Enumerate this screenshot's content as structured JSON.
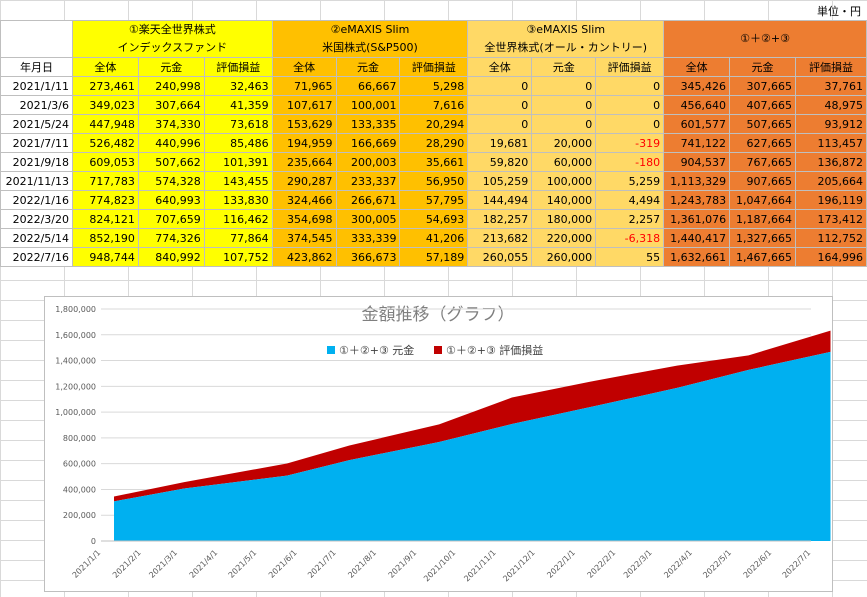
{
  "unit_label": "単位・円",
  "header": {
    "groups": [
      {
        "line1": "①楽天全世界株式",
        "line2": "インデックスファンド"
      },
      {
        "line1": "②eMAXIS Slim",
        "line2": "米国株式(S&P500)"
      },
      {
        "line1": "③eMAXIS Slim",
        "line2": "全世界株式(オール・カントリー)"
      },
      {
        "line1": "①＋②+③",
        "line2": ""
      }
    ],
    "date_label": "年月日",
    "sub_labels": [
      "全体",
      "元金",
      "評価損益"
    ]
  },
  "rows": [
    {
      "date": "2021/1/11",
      "v": [
        "273,461",
        "240,998",
        "32,463",
        "71,965",
        "66,667",
        "5,298",
        "0",
        "0",
        "0",
        "345,426",
        "307,665",
        "37,761"
      ]
    },
    {
      "date": "2021/3/6",
      "v": [
        "349,023",
        "307,664",
        "41,359",
        "107,617",
        "100,001",
        "7,616",
        "0",
        "0",
        "0",
        "456,640",
        "407,665",
        "48,975"
      ]
    },
    {
      "date": "2021/5/24",
      "v": [
        "447,948",
        "374,330",
        "73,618",
        "153,629",
        "133,335",
        "20,294",
        "0",
        "0",
        "0",
        "601,577",
        "507,665",
        "93,912"
      ]
    },
    {
      "date": "2021/7/11",
      "v": [
        "526,482",
        "440,996",
        "85,486",
        "194,959",
        "166,669",
        "28,290",
        "19,681",
        "20,000",
        "-319",
        "741,122",
        "627,665",
        "113,457"
      ]
    },
    {
      "date": "2021/9/18",
      "v": [
        "609,053",
        "507,662",
        "101,391",
        "235,664",
        "200,003",
        "35,661",
        "59,820",
        "60,000",
        "-180",
        "904,537",
        "767,665",
        "136,872"
      ]
    },
    {
      "date": "2021/11/13",
      "v": [
        "717,783",
        "574,328",
        "143,455",
        "290,287",
        "233,337",
        "56,950",
        "105,259",
        "100,000",
        "5,259",
        "1,113,329",
        "907,665",
        "205,664"
      ]
    },
    {
      "date": "2022/1/16",
      "v": [
        "774,823",
        "640,993",
        "133,830",
        "324,466",
        "266,671",
        "57,795",
        "144,494",
        "140,000",
        "4,494",
        "1,243,783",
        "1,047,664",
        "196,119"
      ]
    },
    {
      "date": "2022/3/20",
      "v": [
        "824,121",
        "707,659",
        "116,462",
        "354,698",
        "300,005",
        "54,693",
        "182,257",
        "180,000",
        "2,257",
        "1,361,076",
        "1,187,664",
        "173,412"
      ]
    },
    {
      "date": "2022/5/14",
      "v": [
        "852,190",
        "774,326",
        "77,864",
        "374,545",
        "333,339",
        "41,206",
        "213,682",
        "220,000",
        "-6,318",
        "1,440,417",
        "1,327,665",
        "112,752"
      ]
    },
    {
      "date": "2022/7/16",
      "v": [
        "948,744",
        "840,992",
        "107,752",
        "423,862",
        "366,673",
        "57,189",
        "260,055",
        "260,000",
        "55",
        "1,632,661",
        "1,467,665",
        "164,996"
      ]
    }
  ],
  "colors": {
    "group1": "#ffff00",
    "group2": "#ffc000",
    "group3": "#ffd966",
    "group4": "#ed7d31",
    "principal_area": "#00b0f0",
    "gain_area": "#c00000",
    "negative_text": "#ff0000"
  },
  "chart_data": {
    "type": "area",
    "stacked": true,
    "title": "金額推移（グラフ）",
    "x": [
      "2021/1/1",
      "2021/2/1",
      "2021/3/1",
      "2021/4/1",
      "2021/5/1",
      "2021/6/1",
      "2021/7/1",
      "2021/8/1",
      "2021/9/1",
      "2021/10/1",
      "2021/11/1",
      "2021/12/1",
      "2022/1/1",
      "2022/2/1",
      "2022/3/1",
      "2022/4/1",
      "2022/5/1",
      "2022/6/1",
      "2022/7/1"
    ],
    "points": [
      {
        "date": "2021/1/11",
        "principal": 307665,
        "gain": 37761
      },
      {
        "date": "2021/3/6",
        "principal": 407665,
        "gain": 48975
      },
      {
        "date": "2021/5/24",
        "principal": 507665,
        "gain": 93912
      },
      {
        "date": "2021/7/11",
        "principal": 627665,
        "gain": 113457
      },
      {
        "date": "2021/9/18",
        "principal": 767665,
        "gain": 136872
      },
      {
        "date": "2021/11/13",
        "principal": 907665,
        "gain": 205664
      },
      {
        "date": "2022/1/16",
        "principal": 1047664,
        "gain": 196119
      },
      {
        "date": "2022/3/20",
        "principal": 1187664,
        "gain": 173412
      },
      {
        "date": "2022/5/14",
        "principal": 1327665,
        "gain": 112752
      },
      {
        "date": "2022/7/16",
        "principal": 1467665,
        "gain": 164996
      }
    ],
    "series": [
      {
        "name": "①＋②+③ 元金",
        "color": "#00b0f0"
      },
      {
        "name": "①＋②+③ 評価損益",
        "color": "#c00000"
      }
    ],
    "yticks": [
      "0",
      "200,000",
      "400,000",
      "600,000",
      "800,000",
      "1,000,000",
      "1,200,000",
      "1,400,000",
      "1,600,000",
      "1,800,000"
    ],
    "ylim": [
      0,
      1800000
    ],
    "legend_position": "top"
  }
}
